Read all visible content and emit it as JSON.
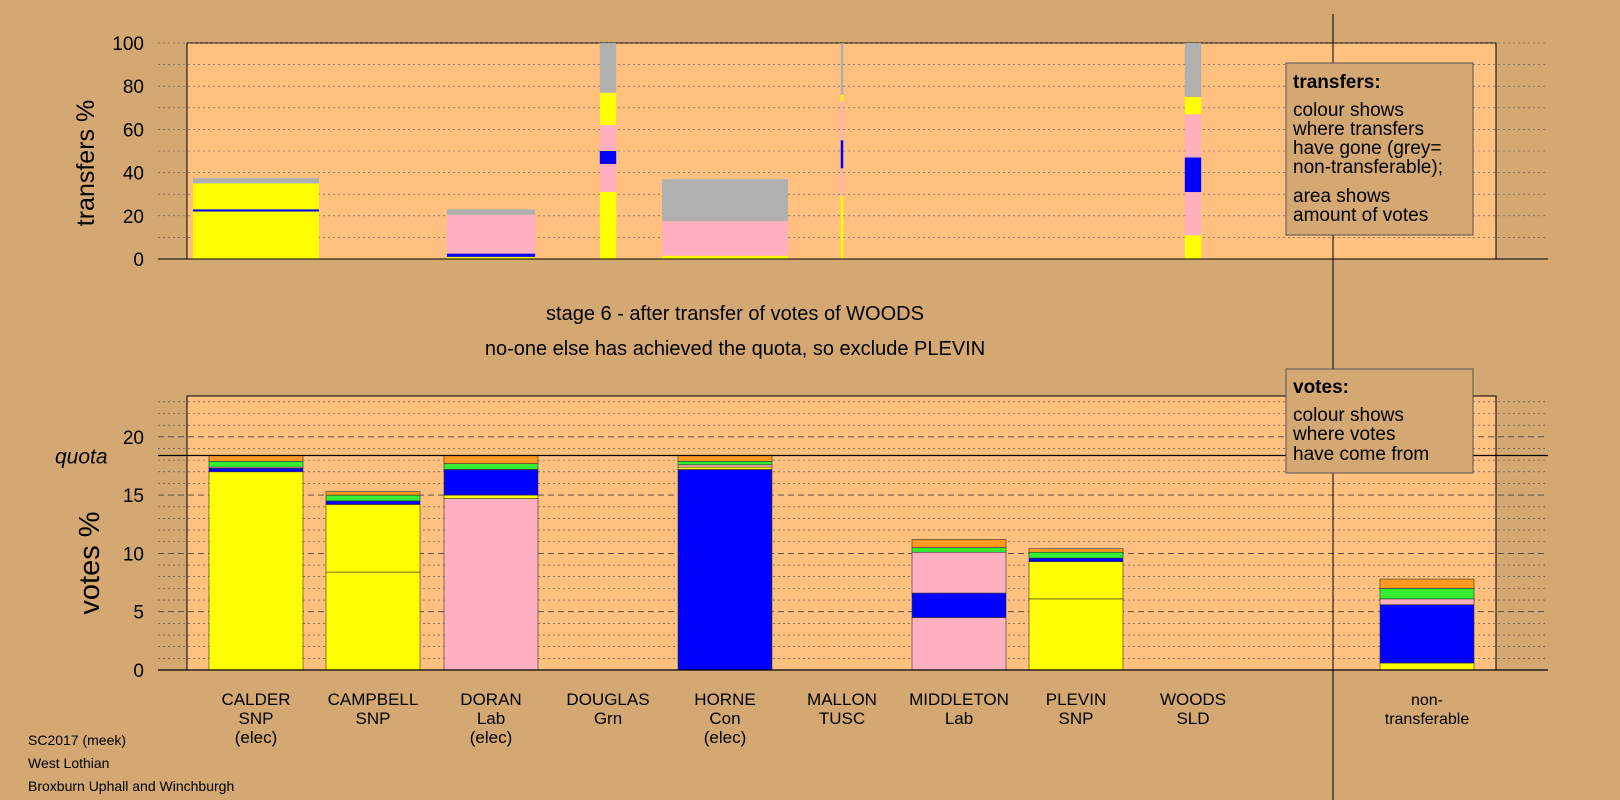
{
  "meta": {
    "election": "SC2017 (meek)",
    "council": "West Lothian",
    "ward": "Broxburn Uphall and Winchburgh"
  },
  "headline": "stage 6 - after transfer of votes of WOODS",
  "subline": "no-one else has achieved the quota, so exclude PLEVIN",
  "colors": {
    "SNP": "#ffff00",
    "Lab": "#ffb0c0",
    "Con": "#0000ff",
    "Grn": "#33ee33",
    "SLD": "#ff9922",
    "TUSC": "#cc2222",
    "nontransferable": "#b0b0b0",
    "panel": "#ffc080",
    "background": "#d4a872"
  },
  "chart_data": [
    {
      "type": "bar",
      "stacked": true,
      "name": "transfers",
      "ylabel": "transfers %",
      "ylim": [
        0,
        100
      ],
      "yticks": [
        0,
        20,
        40,
        60,
        80,
        100
      ],
      "legend": {
        "title": "transfers:",
        "lines": [
          "colour shows",
          "where transfers",
          "have gone (grey=",
          "non-transferable);"
        ],
        "lines2": [
          "area shows",
          "amount of votes"
        ]
      },
      "bars": [
        {
          "candidate": "CALDER",
          "width_share": 1.0,
          "segments": [
            {
              "party": "SNP",
              "value": 22
            },
            {
              "party": "Con",
              "value": 1
            },
            {
              "party": "SNP",
              "value": 12
            },
            {
              "party": "nontransferable",
              "value": 2.5
            }
          ]
        },
        {
          "candidate": "DORAN",
          "width_share": 0.7,
          "segments": [
            {
              "party": "SNP",
              "value": 1
            },
            {
              "party": "Con",
              "value": 1.5
            },
            {
              "party": "Lab",
              "value": 18
            },
            {
              "party": "nontransferable",
              "value": 2.5
            }
          ]
        },
        {
          "candidate": "DOUGLAS",
          "width_share": 0.13,
          "segments": [
            {
              "party": "SNP",
              "value": 31
            },
            {
              "party": "Lab",
              "value": 13
            },
            {
              "party": "Con",
              "value": 6
            },
            {
              "party": "Lab",
              "value": 12
            },
            {
              "party": "SNP",
              "value": 15
            },
            {
              "party": "nontransferable",
              "value": 23
            }
          ]
        },
        {
          "candidate": "HORNE",
          "width_share": 1.0,
          "segments": [
            {
              "party": "SNP",
              "value": 1.5
            },
            {
              "party": "Lab",
              "value": 16
            },
            {
              "party": "nontransferable",
              "value": 19.5
            }
          ]
        },
        {
          "candidate": "MALLON",
          "width_share": 0.02,
          "segments": [
            {
              "party": "SNP",
              "value": 29
            },
            {
              "party": "Lab",
              "value": 13
            },
            {
              "party": "Con",
              "value": 13
            },
            {
              "party": "Lab",
              "value": 18
            },
            {
              "party": "SNP",
              "value": 3
            },
            {
              "party": "nontransferable",
              "value": 24
            }
          ]
        },
        {
          "candidate": "WOODS",
          "width_share": 0.13,
          "segments": [
            {
              "party": "SNP",
              "value": 11
            },
            {
              "party": "Lab",
              "value": 20
            },
            {
              "party": "Con",
              "value": 16
            },
            {
              "party": "Lab",
              "value": 20
            },
            {
              "party": "SNP",
              "value": 8
            },
            {
              "party": "nontransferable",
              "value": 25
            }
          ]
        }
      ]
    },
    {
      "type": "bar",
      "stacked": true,
      "name": "votes",
      "ylabel": "votes %",
      "ylim": [
        0,
        23.5
      ],
      "yticks": [
        0,
        5,
        10,
        15,
        20
      ],
      "quota": 18.4,
      "quota_label": "quota",
      "legend": {
        "title": "votes:",
        "lines": [
          "colour shows",
          "where votes",
          "have come from"
        ]
      },
      "categories": [
        {
          "name": "CALDER",
          "party": "SNP",
          "note": "(elec)"
        },
        {
          "name": "CAMPBELL",
          "party": "SNP",
          "note": ""
        },
        {
          "name": "DORAN",
          "party": "Lab",
          "note": "(elec)"
        },
        {
          "name": "DOUGLAS",
          "party": "Grn",
          "note": ""
        },
        {
          "name": "HORNE",
          "party": "Con",
          "note": "(elec)"
        },
        {
          "name": "MALLON",
          "party": "TUSC",
          "note": ""
        },
        {
          "name": "MIDDLETON",
          "party": "Lab",
          "note": ""
        },
        {
          "name": "PLEVIN",
          "party": "SNP",
          "note": ""
        },
        {
          "name": "WOODS",
          "party": "SLD",
          "note": ""
        },
        {
          "name": "non-",
          "party": "transferable",
          "note": ""
        }
      ],
      "bars": [
        {
          "candidate": "CALDER",
          "segments": [
            {
              "party": "SNP",
              "value": 17.0
            },
            {
              "party": "Con",
              "value": 0.3
            },
            {
              "party": "Lab",
              "value": 0.1
            },
            {
              "party": "Grn",
              "value": 0.5
            },
            {
              "party": "SLD",
              "value": 0.5
            }
          ]
        },
        {
          "candidate": "CAMPBELL",
          "segments": [
            {
              "party": "SNP",
              "value": 8.4
            },
            {
              "party": "SNP",
              "value": 5.8
            },
            {
              "party": "Con",
              "value": 0.3
            },
            {
              "party": "Grn",
              "value": 0.5
            },
            {
              "party": "SLD",
              "value": 0.3
            }
          ]
        },
        {
          "candidate": "DORAN",
          "segments": [
            {
              "party": "Lab",
              "value": 14.7
            },
            {
              "party": "SNP",
              "value": 0.3
            },
            {
              "party": "Con",
              "value": 2.2
            },
            {
              "party": "Grn",
              "value": 0.5
            },
            {
              "party": "SLD",
              "value": 0.7
            }
          ]
        },
        {
          "candidate": "DOUGLAS",
          "segments": []
        },
        {
          "candidate": "HORNE",
          "segments": [
            {
              "party": "Con",
              "value": 17.2
            },
            {
              "party": "SNP",
              "value": 0.2
            },
            {
              "party": "Lab",
              "value": 0.2
            },
            {
              "party": "Grn",
              "value": 0.3
            },
            {
              "party": "SLD",
              "value": 0.5
            }
          ]
        },
        {
          "candidate": "MALLON",
          "segments": []
        },
        {
          "candidate": "MIDDLETON",
          "segments": [
            {
              "party": "Lab",
              "value": 4.5
            },
            {
              "party": "Con",
              "value": 2.1
            },
            {
              "party": "Lab",
              "value": 3.5
            },
            {
              "party": "Grn",
              "value": 0.4
            },
            {
              "party": "SLD",
              "value": 0.7
            }
          ]
        },
        {
          "candidate": "PLEVIN",
          "segments": [
            {
              "party": "SNP",
              "value": 6.1
            },
            {
              "party": "SNP",
              "value": 3.2
            },
            {
              "party": "Con",
              "value": 0.3
            },
            {
              "party": "Grn",
              "value": 0.5
            },
            {
              "party": "SLD",
              "value": 0.3
            }
          ]
        },
        {
          "candidate": "WOODS",
          "segments": []
        },
        {
          "candidate": "non-transferable",
          "segments": [
            {
              "party": "SNP",
              "value": 0.6
            },
            {
              "party": "Con",
              "value": 5.0
            },
            {
              "party": "Lab",
              "value": 0.5
            },
            {
              "party": "Grn",
              "value": 0.9
            },
            {
              "party": "SLD",
              "value": 0.8
            }
          ]
        }
      ]
    }
  ]
}
